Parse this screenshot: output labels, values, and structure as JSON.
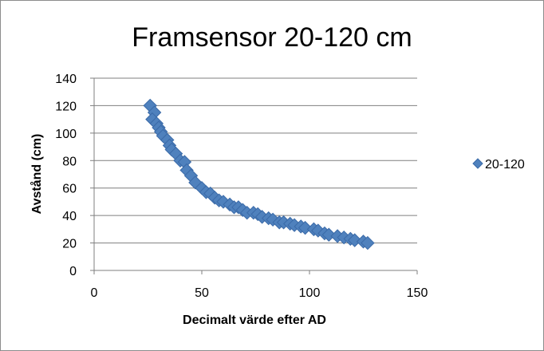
{
  "chart_data": {
    "type": "scatter",
    "title": "Framsensor 20-120 cm",
    "xlabel": "Decimalt värde efter AD",
    "ylabel": "Avstånd (cm)",
    "xlim": [
      0,
      150
    ],
    "ylim": [
      0,
      140
    ],
    "x_ticks": [
      "0",
      "50",
      "100",
      "150"
    ],
    "y_ticks": [
      "0",
      "20",
      "40",
      "60",
      "80",
      "100",
      "120",
      "140"
    ],
    "grid": "horizontal",
    "legend_position": "right",
    "series": [
      {
        "name": "20-120",
        "color": "#4f81bd",
        "marker": "diamond",
        "points": [
          [
            26,
            120
          ],
          [
            28,
            115
          ],
          [
            27,
            110
          ],
          [
            29,
            107
          ],
          [
            30,
            104
          ],
          [
            31,
            101
          ],
          [
            32,
            98
          ],
          [
            34,
            95
          ],
          [
            35,
            91
          ],
          [
            36,
            88
          ],
          [
            38,
            85
          ],
          [
            40,
            80
          ],
          [
            42,
            79
          ],
          [
            43,
            73
          ],
          [
            45,
            69
          ],
          [
            47,
            64
          ],
          [
            50,
            60
          ],
          [
            52,
            57
          ],
          [
            54,
            56
          ],
          [
            56,
            53
          ],
          [
            58,
            51
          ],
          [
            60,
            50
          ],
          [
            63,
            48
          ],
          [
            65,
            46
          ],
          [
            67,
            46
          ],
          [
            69,
            44
          ],
          [
            71,
            42
          ],
          [
            74,
            42
          ],
          [
            76,
            41
          ],
          [
            78,
            39
          ],
          [
            81,
            38
          ],
          [
            83,
            37
          ],
          [
            86,
            35
          ],
          [
            88,
            35
          ],
          [
            91,
            34
          ],
          [
            93,
            33
          ],
          [
            96,
            32
          ],
          [
            98,
            31
          ],
          [
            102,
            30
          ],
          [
            104,
            29
          ],
          [
            107,
            27
          ],
          [
            109,
            26
          ],
          [
            113,
            25
          ],
          [
            116,
            24
          ],
          [
            119,
            23
          ],
          [
            121,
            22
          ],
          [
            125,
            21
          ],
          [
            127,
            20
          ]
        ]
      }
    ]
  }
}
